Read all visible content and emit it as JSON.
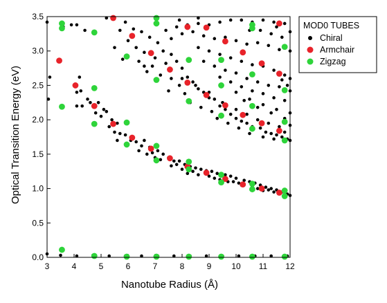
{
  "chart_data": {
    "type": "scatter",
    "xlabel": "Nanotube Radius (Å)",
    "ylabel": "Optical Transition Energy (eV)",
    "xlim": [
      3,
      12
    ],
    "ylim": [
      0,
      3.5
    ],
    "xticks": [
      "3",
      "4",
      "5",
      "6",
      "7",
      "8",
      "9",
      "10",
      "11",
      "12"
    ],
    "yticks": [
      "0.0",
      "0.5",
      "1.0",
      "1.5",
      "2.0",
      "2.5",
      "3.0",
      "3.5"
    ],
    "grid": false,
    "legend": {
      "title": "MOD0 TUBES",
      "position": "right-outside-top"
    },
    "colors": {
      "Chiral": "#000000",
      "Armchair": "#e8232a",
      "Zigzag": "#2ed43a"
    },
    "series": [
      {
        "name": "Chiral",
        "points": [
          [
            3.0,
            3.42
          ],
          [
            3.1,
            2.62
          ],
          [
            3.05,
            2.3
          ],
          [
            3.6,
            3.35
          ],
          [
            3.9,
            3.38
          ],
          [
            4.1,
            3.38
          ],
          [
            4.2,
            2.62
          ],
          [
            4.25,
            2.42
          ],
          [
            4.1,
            2.4
          ],
          [
            4.4,
            3.3
          ],
          [
            4.5,
            2.3
          ],
          [
            4.6,
            2.25
          ],
          [
            4.1,
            2.2
          ],
          [
            4.3,
            2.2
          ],
          [
            4.9,
            2.25
          ],
          [
            5.1,
            2.15
          ],
          [
            5.2,
            2.12
          ],
          [
            4.8,
            2.1
          ],
          [
            5.0,
            2.05
          ],
          [
            5.4,
            2.0
          ],
          [
            5.6,
            1.95
          ],
          [
            5.3,
            1.9
          ],
          [
            5.5,
            1.82
          ],
          [
            5.7,
            1.8
          ],
          [
            5.9,
            1.78
          ],
          [
            5.6,
            1.7
          ],
          [
            6.1,
            1.7
          ],
          [
            6.3,
            1.68
          ],
          [
            6.5,
            1.62
          ],
          [
            6.6,
            1.7
          ],
          [
            6.4,
            1.55
          ],
          [
            6.8,
            1.6
          ],
          [
            6.9,
            1.52
          ],
          [
            7.1,
            1.55
          ],
          [
            7.3,
            1.5
          ],
          [
            7.5,
            1.45
          ],
          [
            7.2,
            1.42
          ],
          [
            7.7,
            1.4
          ],
          [
            7.9,
            1.4
          ],
          [
            8.1,
            1.35
          ],
          [
            7.6,
            1.33
          ],
          [
            8.3,
            1.32
          ],
          [
            8.5,
            1.3
          ],
          [
            8.7,
            1.28
          ],
          [
            8.0,
            1.28
          ],
          [
            8.9,
            1.26
          ],
          [
            9.1,
            1.25
          ],
          [
            9.3,
            1.22
          ],
          [
            8.6,
            1.2
          ],
          [
            9.6,
            1.2
          ],
          [
            9.8,
            1.18
          ],
          [
            10.0,
            1.15
          ],
          [
            9.2,
            1.15
          ],
          [
            10.3,
            1.12
          ],
          [
            10.5,
            1.1
          ],
          [
            9.7,
            1.1
          ],
          [
            10.7,
            1.08
          ],
          [
            10.9,
            1.05
          ],
          [
            10.2,
            1.05
          ],
          [
            11.1,
            1.02
          ],
          [
            11.3,
            1.0
          ],
          [
            10.8,
            1.0
          ],
          [
            11.5,
            0.98
          ],
          [
            11.7,
            0.95
          ],
          [
            11.9,
            0.92
          ],
          [
            12.0,
            0.9
          ],
          [
            11.4,
            0.95
          ],
          [
            11.8,
            0.98
          ],
          [
            7.0,
            1.45
          ],
          [
            7.8,
            1.35
          ],
          [
            8.4,
            1.25
          ],
          [
            9.0,
            1.18
          ],
          [
            9.4,
            1.13
          ],
          [
            10.1,
            1.08
          ],
          [
            10.6,
            1.03
          ],
          [
            11.2,
            0.98
          ],
          [
            6.7,
            1.5
          ],
          [
            8.2,
            1.22
          ],
          [
            9.9,
            1.1
          ],
          [
            11.0,
            0.97
          ],
          [
            5.2,
            3.48
          ],
          [
            5.9,
            3.42
          ],
          [
            6.2,
            3.32
          ],
          [
            5.7,
            3.3
          ],
          [
            6.5,
            3.28
          ],
          [
            6.0,
            3.15
          ],
          [
            6.8,
            3.2
          ],
          [
            5.5,
            3.05
          ],
          [
            6.3,
            3.05
          ],
          [
            7.1,
            3.12
          ],
          [
            6.6,
            2.98
          ],
          [
            5.8,
            2.88
          ],
          [
            7.3,
            3.0
          ],
          [
            7.0,
            2.9
          ],
          [
            6.4,
            2.85
          ],
          [
            7.6,
            2.95
          ],
          [
            6.9,
            2.78
          ],
          [
            7.4,
            2.82
          ],
          [
            7.8,
            2.85
          ],
          [
            6.7,
            2.7
          ],
          [
            7.2,
            2.65
          ],
          [
            8.0,
            2.75
          ],
          [
            7.6,
            2.6
          ],
          [
            6.6,
            2.78
          ],
          [
            8.2,
            2.62
          ],
          [
            7.9,
            2.5
          ],
          [
            8.4,
            2.55
          ],
          [
            8.6,
            2.45
          ],
          [
            7.5,
            2.42
          ],
          [
            8.1,
            2.38
          ],
          [
            8.8,
            2.4
          ],
          [
            9.0,
            2.32
          ],
          [
            8.3,
            2.25
          ],
          [
            9.2,
            2.3
          ],
          [
            8.7,
            2.18
          ],
          [
            9.4,
            2.2
          ],
          [
            9.1,
            2.12
          ],
          [
            9.6,
            2.15
          ],
          [
            9.8,
            2.08
          ],
          [
            9.3,
            2.02
          ],
          [
            10.0,
            2.02
          ],
          [
            10.2,
            1.98
          ],
          [
            9.7,
            1.95
          ],
          [
            10.4,
            1.95
          ],
          [
            10.6,
            1.9
          ],
          [
            10.1,
            1.88
          ],
          [
            10.9,
            1.88
          ],
          [
            11.1,
            1.82
          ],
          [
            10.5,
            1.8
          ],
          [
            11.3,
            1.8
          ],
          [
            11.5,
            1.78
          ],
          [
            11.0,
            1.75
          ],
          [
            11.7,
            1.75
          ],
          [
            11.9,
            1.72
          ],
          [
            12.0,
            1.7
          ],
          [
            11.4,
            1.72
          ],
          [
            11.8,
            1.82
          ],
          [
            12.0,
            1.92
          ],
          [
            11.6,
            1.9
          ],
          [
            11.2,
            1.95
          ],
          [
            10.8,
            2.0
          ],
          [
            10.4,
            2.08
          ],
          [
            10.0,
            2.15
          ],
          [
            9.5,
            2.25
          ],
          [
            9.0,
            2.4
          ],
          [
            8.5,
            2.5
          ],
          [
            8.0,
            2.6
          ],
          [
            7.4,
            3.3
          ],
          [
            7.8,
            3.35
          ],
          [
            8.2,
            3.38
          ],
          [
            8.6,
            3.4
          ],
          [
            9.0,
            3.38
          ],
          [
            9.4,
            3.42
          ],
          [
            9.8,
            3.45
          ],
          [
            10.2,
            3.45
          ],
          [
            10.6,
            3.42
          ],
          [
            11.0,
            3.45
          ],
          [
            11.4,
            3.42
          ],
          [
            11.8,
            3.4
          ],
          [
            7.6,
            3.18
          ],
          [
            8.0,
            3.25
          ],
          [
            8.4,
            3.28
          ],
          [
            8.8,
            3.22
          ],
          [
            9.2,
            3.18
          ],
          [
            9.6,
            3.2
          ],
          [
            10.0,
            3.15
          ],
          [
            10.4,
            3.1
          ],
          [
            10.8,
            3.12
          ],
          [
            11.2,
            3.08
          ],
          [
            11.6,
            3.02
          ],
          [
            12.0,
            3.0
          ],
          [
            8.6,
            3.05
          ],
          [
            9.0,
            3.0
          ],
          [
            9.4,
            2.95
          ],
          [
            9.8,
            2.9
          ],
          [
            10.2,
            2.85
          ],
          [
            10.6,
            2.8
          ],
          [
            11.0,
            2.78
          ],
          [
            11.4,
            2.72
          ],
          [
            11.8,
            2.65
          ],
          [
            12.0,
            2.6
          ],
          [
            8.8,
            2.85
          ],
          [
            9.2,
            2.78
          ],
          [
            9.6,
            2.72
          ],
          [
            10.0,
            2.68
          ],
          [
            10.4,
            2.6
          ],
          [
            10.8,
            2.55
          ],
          [
            11.2,
            2.5
          ],
          [
            11.6,
            2.48
          ],
          [
            12.0,
            2.42
          ],
          [
            9.4,
            2.62
          ],
          [
            9.8,
            2.55
          ],
          [
            10.2,
            2.48
          ],
          [
            10.6,
            2.42
          ],
          [
            11.0,
            2.38
          ],
          [
            11.4,
            2.32
          ],
          [
            11.8,
            2.28
          ],
          [
            10.0,
            2.4
          ],
          [
            10.5,
            2.3
          ],
          [
            11.0,
            2.22
          ],
          [
            11.5,
            2.15
          ],
          [
            12.0,
            2.1
          ],
          [
            10.3,
            2.28
          ],
          [
            10.8,
            2.18
          ],
          [
            11.3,
            2.1
          ],
          [
            11.8,
            2.02
          ],
          [
            11.9,
            2.5
          ],
          [
            11.7,
            2.58
          ],
          [
            10.9,
            3.3
          ],
          [
            11.3,
            3.25
          ],
          [
            11.7,
            3.2
          ],
          [
            12.0,
            3.28
          ],
          [
            10.5,
            3.3
          ],
          [
            11.5,
            3.35
          ],
          [
            8.6,
            3.48
          ],
          [
            7.9,
            3.45
          ],
          [
            3.0,
            0.05
          ],
          [
            3.5,
            0.03
          ],
          [
            4.1,
            0.02
          ],
          [
            4.7,
            0.03
          ],
          [
            5.3,
            0.02
          ],
          [
            5.9,
            0.02
          ],
          [
            6.5,
            0.02
          ],
          [
            7.1,
            0.02
          ],
          [
            7.7,
            0.02
          ],
          [
            8.3,
            0.02
          ],
          [
            8.9,
            0.02
          ],
          [
            9.5,
            0.02
          ],
          [
            10.1,
            0.02
          ],
          [
            10.7,
            0.02
          ],
          [
            11.3,
            0.02
          ],
          [
            11.9,
            0.02
          ]
        ]
      },
      {
        "name": "Armchair",
        "points": [
          [
            3.45,
            2.86
          ],
          [
            4.05,
            2.5
          ],
          [
            4.75,
            2.2
          ],
          [
            5.45,
            1.94
          ],
          [
            5.45,
            3.48
          ],
          [
            6.15,
            1.74
          ],
          [
            6.15,
            3.22
          ],
          [
            6.85,
            1.58
          ],
          [
            6.85,
            2.97
          ],
          [
            7.55,
            1.44
          ],
          [
            7.55,
            2.73
          ],
          [
            8.2,
            1.32
          ],
          [
            8.2,
            2.54
          ],
          [
            8.2,
            3.35
          ],
          [
            8.9,
            1.23
          ],
          [
            8.9,
            2.36
          ],
          [
            8.9,
            3.34
          ],
          [
            9.6,
            1.14
          ],
          [
            9.6,
            2.21
          ],
          [
            9.6,
            3.14
          ],
          [
            10.25,
            1.06
          ],
          [
            10.25,
            2.07
          ],
          [
            10.25,
            2.98
          ],
          [
            10.95,
            1.0
          ],
          [
            10.95,
            1.95
          ],
          [
            10.95,
            2.82
          ],
          [
            11.6,
            0.94
          ],
          [
            11.6,
            1.84
          ],
          [
            11.6,
            2.67
          ],
          [
            11.6,
            3.4
          ]
        ]
      },
      {
        "name": "Zigzag",
        "points": [
          [
            3.55,
            3.4
          ],
          [
            3.55,
            3.33
          ],
          [
            3.55,
            2.19
          ],
          [
            3.55,
            0.11
          ],
          [
            4.75,
            3.27
          ],
          [
            4.75,
            2.46
          ],
          [
            4.75,
            1.94
          ],
          [
            4.75,
            0.02
          ],
          [
            5.95,
            2.92
          ],
          [
            5.95,
            1.96
          ],
          [
            5.95,
            1.64
          ],
          [
            5.95,
            0.01
          ],
          [
            7.05,
            3.48
          ],
          [
            7.05,
            3.4
          ],
          [
            7.05,
            2.58
          ],
          [
            7.05,
            1.62
          ],
          [
            7.05,
            1.41
          ],
          [
            7.05,
            0.01
          ],
          [
            8.25,
            2.87
          ],
          [
            8.25,
            2.27
          ],
          [
            8.25,
            1.39
          ],
          [
            8.25,
            1.28
          ],
          [
            8.25,
            0.01
          ],
          [
            9.45,
            2.87
          ],
          [
            9.45,
            2.5
          ],
          [
            9.45,
            2.06
          ],
          [
            9.45,
            1.2
          ],
          [
            9.45,
            1.09
          ],
          [
            9.45,
            0.01
          ],
          [
            10.6,
            3.38
          ],
          [
            10.6,
            3.33
          ],
          [
            10.6,
            2.66
          ],
          [
            10.6,
            2.2
          ],
          [
            10.6,
            1.87
          ],
          [
            10.6,
            1.07
          ],
          [
            10.6,
            0.99
          ],
          [
            10.6,
            0.01
          ],
          [
            11.8,
            3.06
          ],
          [
            11.8,
            2.43
          ],
          [
            11.8,
            1.97
          ],
          [
            11.8,
            1.7
          ],
          [
            11.8,
            0.97
          ],
          [
            11.8,
            0.89
          ],
          [
            11.8,
            0.01
          ]
        ]
      }
    ]
  }
}
